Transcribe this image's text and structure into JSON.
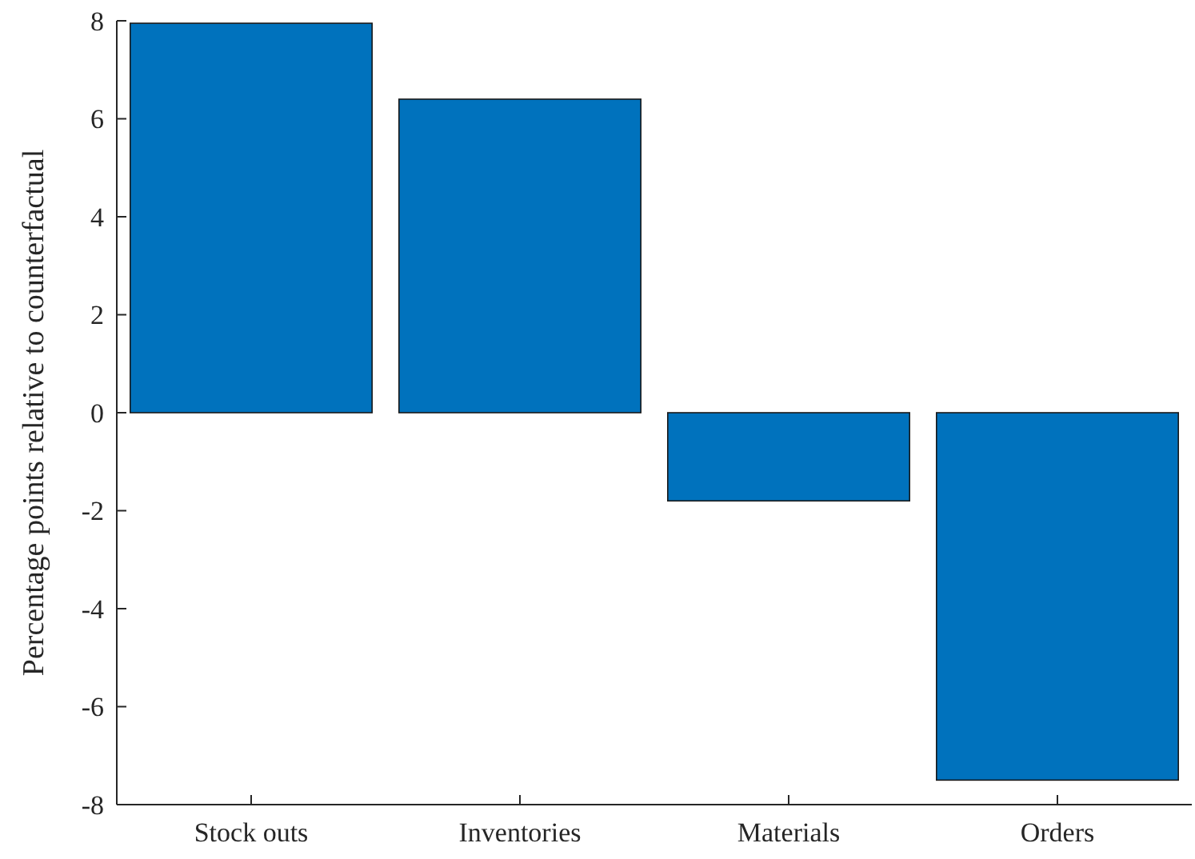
{
  "chart_data": {
    "type": "bar",
    "ylabel": "Percentage points relative to counterfactual",
    "categories": [
      "Stock outs",
      "Inventories",
      "Materials",
      "Orders"
    ],
    "values": [
      7.95,
      6.4,
      -1.8,
      -7.5
    ],
    "color": "#0072bd",
    "ylim": [
      -8,
      8
    ],
    "yticks": [
      -8,
      -6,
      -4,
      -2,
      0,
      2,
      4,
      6,
      8
    ],
    "grid": false
  }
}
